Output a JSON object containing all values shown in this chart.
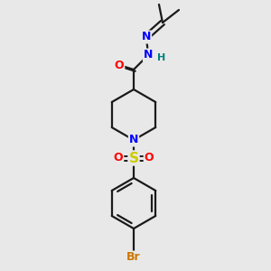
{
  "background_color": "#e8e8e8",
  "bond_color": "#1a1a1a",
  "atom_colors": {
    "O": "#ff0000",
    "N": "#0000ff",
    "S": "#cccc00",
    "Br": "#cc7700",
    "H": "#008080",
    "C": "#1a1a1a"
  },
  "figsize": [
    3.0,
    3.0
  ],
  "dpi": 100
}
